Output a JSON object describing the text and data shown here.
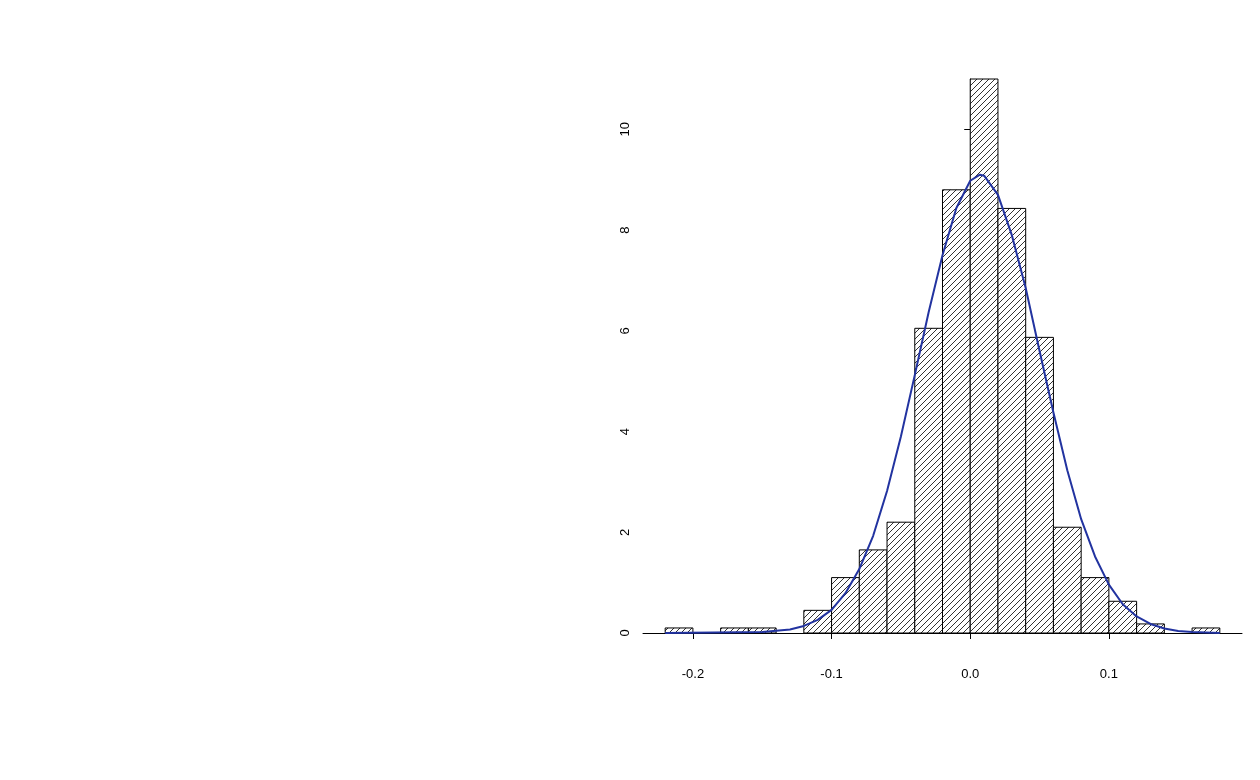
{
  "chart_data": {
    "type": "histogram",
    "bins": [
      -0.22,
      -0.2,
      -0.18,
      -0.16,
      -0.14,
      -0.12,
      -0.1,
      -0.08,
      -0.06,
      -0.04,
      -0.02,
      0,
      0.02,
      0.04,
      0.06,
      0.08,
      0.1,
      0.12,
      0.14,
      0.16,
      0.18
    ],
    "values": [
      0.1,
      0,
      0.1,
      0.1,
      0,
      0.45,
      1.1,
      1.65,
      2.2,
      6.05,
      8.8,
      11,
      8.43,
      5.87,
      2.1,
      1.1,
      0.63,
      0.18,
      0,
      0.1
    ],
    "color": "#ffffff",
    "series": [
      {
        "type": "line",
        "color": "#2233a0",
        "x": [
          -0.22,
          -0.15,
          -0.13,
          -0.12,
          -0.11,
          -0.1,
          -0.09,
          -0.08,
          -0.07,
          -0.06,
          -0.05,
          -0.04,
          -0.03,
          -0.02,
          -0.01,
          0,
          0.007,
          0.01,
          0.02,
          0.03,
          0.04,
          0.05,
          0.06,
          0.07,
          0.08,
          0.09,
          0.1,
          0.11,
          0.12,
          0.13,
          0.14,
          0.15,
          0.16,
          0.18
        ],
        "values": [
          0,
          0.02,
          0.07,
          0.14,
          0.26,
          0.46,
          0.79,
          1.27,
          1.93,
          2.82,
          3.9,
          5.12,
          6.37,
          7.5,
          8.44,
          8.98,
          9.1,
          9.08,
          8.7,
          7.9,
          6.85,
          5.6,
          4.38,
          3.23,
          2.26,
          1.52,
          0.96,
          0.57,
          0.33,
          0.18,
          0.09,
          0.04,
          0.02,
          0
        ]
      }
    ],
    "xlim": [
      -0.236,
      0.196
    ],
    "xticks": [
      {
        "value": -0.2,
        "label": "-0.2"
      },
      {
        "value": -0.1,
        "label": "-0.1"
      },
      {
        "value": 0,
        "label": "0.0"
      },
      {
        "value": 0.1,
        "label": "0.1"
      }
    ],
    "ylim": [
      0,
      11
    ],
    "yticks": [
      0,
      2,
      4,
      6,
      8,
      10
    ],
    "marker": "none",
    "line_style": "solid"
  }
}
